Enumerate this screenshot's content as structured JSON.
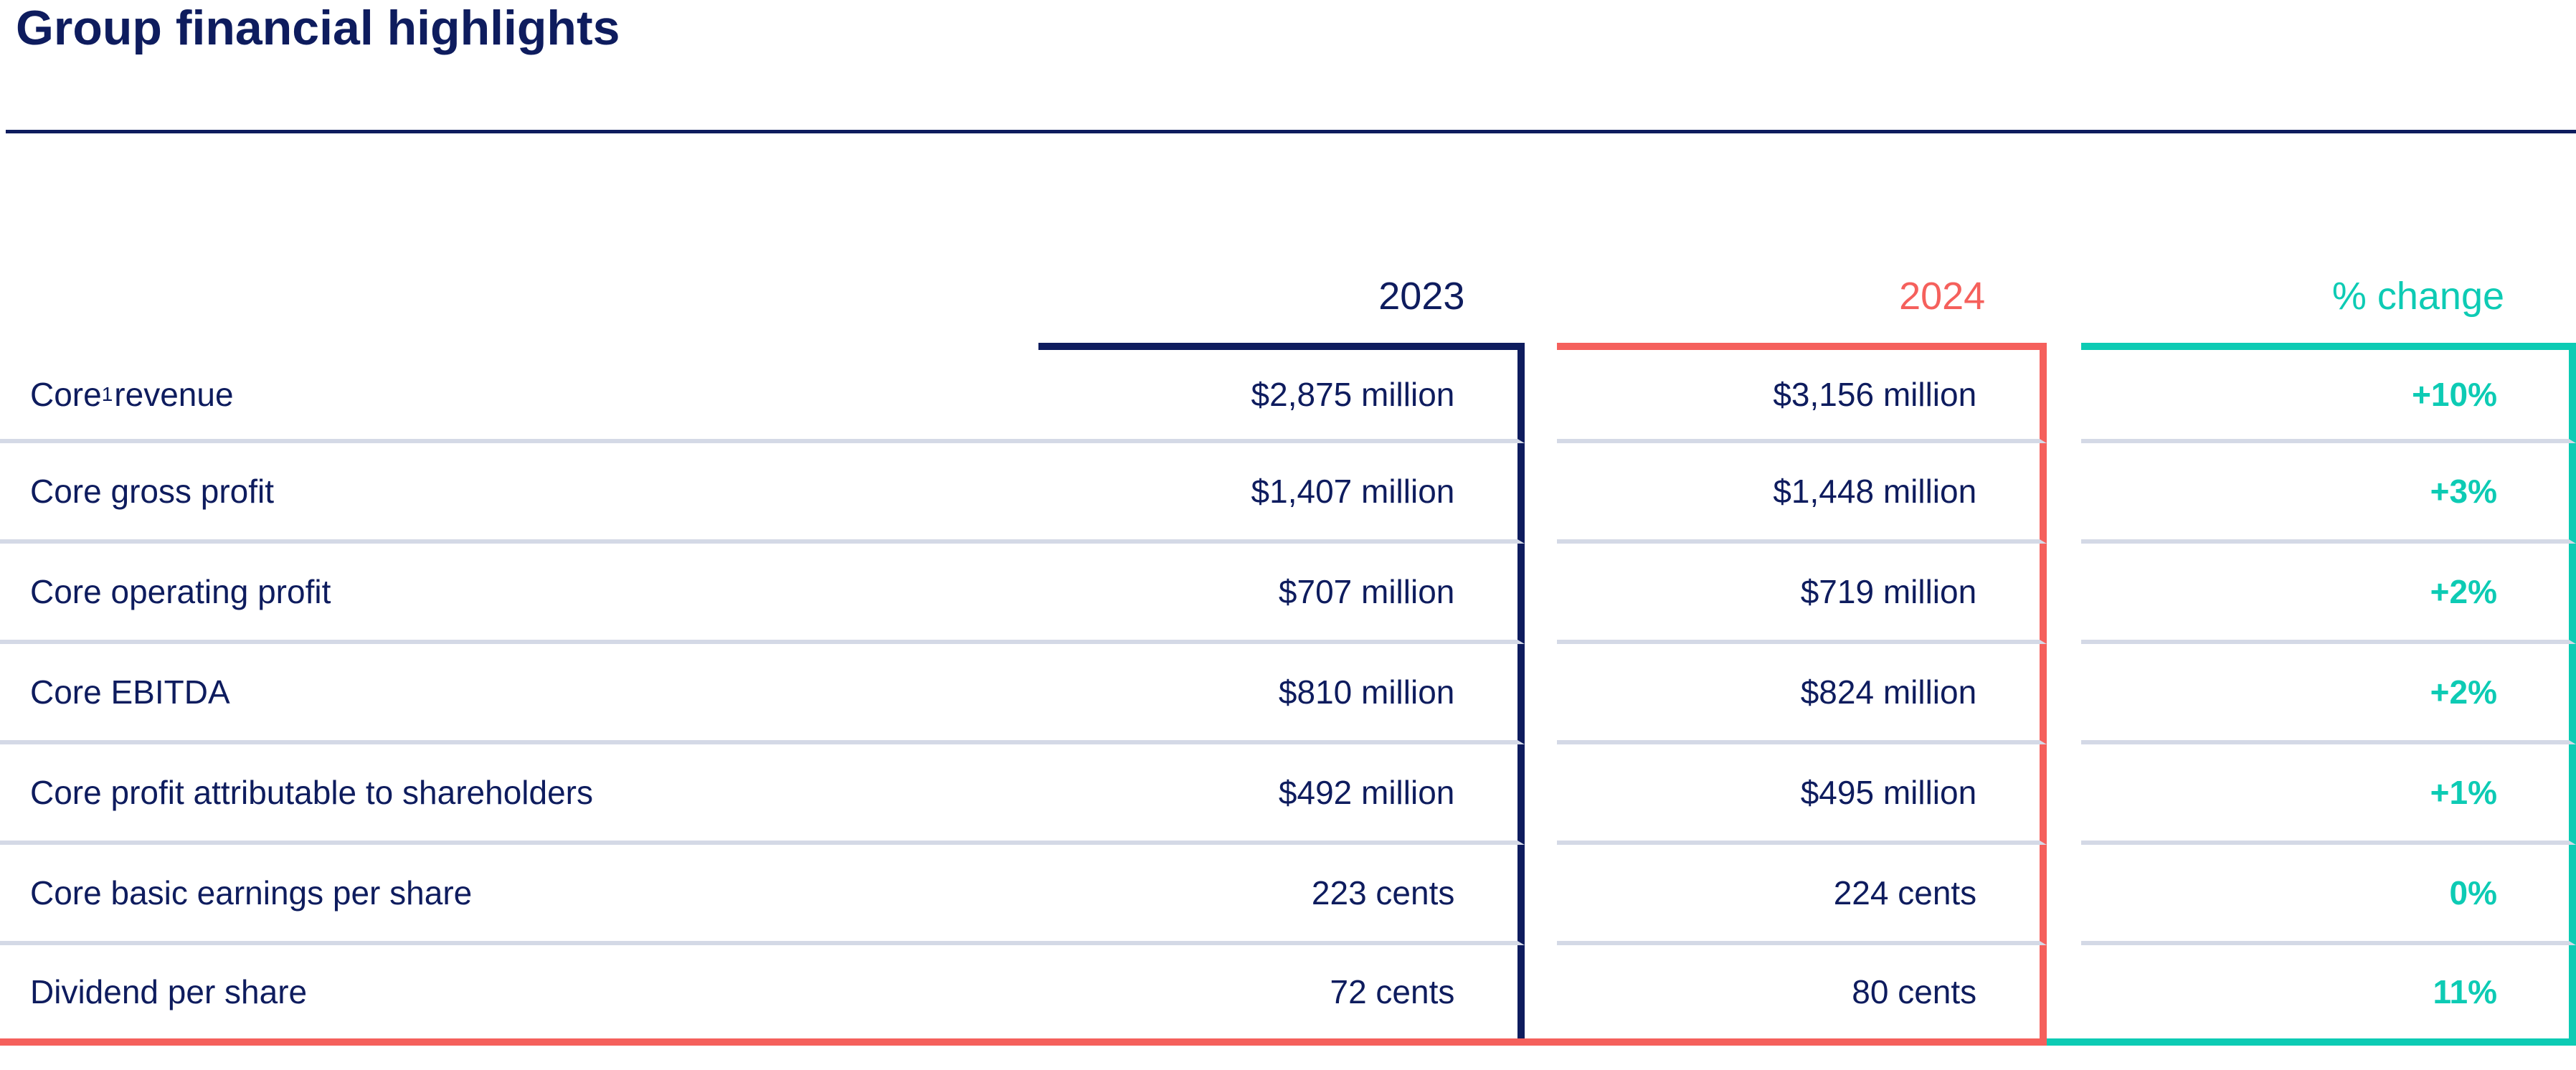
{
  "title": "Group financial highlights",
  "colors": {
    "navy": "#0E1C5E",
    "coral": "#F5605C",
    "teal": "#0DCBB4",
    "row_divider": "#D4D9E6"
  },
  "table": {
    "columns": [
      {
        "key": "y2023",
        "label": "2023"
      },
      {
        "key": "y2024",
        "label": "2024"
      },
      {
        "key": "change",
        "label": "% change"
      }
    ],
    "rows": [
      {
        "label": "Core",
        "label_sup": "1",
        "label_rest": " revenue",
        "y2023": "$2,875 million",
        "y2024": "$3,156 million",
        "change": "+10%"
      },
      {
        "label": "Core gross profit",
        "label_sup": "",
        "label_rest": "",
        "y2023": "$1,407 million",
        "y2024": "$1,448 million",
        "change": "+3%"
      },
      {
        "label": "Core operating profit",
        "label_sup": "",
        "label_rest": "",
        "y2023": "$707 million",
        "y2024": "$719 million",
        "change": "+2%"
      },
      {
        "label": "Core EBITDA",
        "label_sup": "",
        "label_rest": "",
        "y2023": "$810 million",
        "y2024": "$824 million",
        "change": "+2%"
      },
      {
        "label": "Core profit attributable to shareholders",
        "label_sup": "",
        "label_rest": "",
        "y2023": "$492 million",
        "y2024": "$495 million",
        "change": "+1%"
      },
      {
        "label": "Core basic earnings per share",
        "label_sup": "",
        "label_rest": "",
        "y2023": "223 cents",
        "y2024": "224 cents",
        "change": "0%"
      },
      {
        "label": "Dividend per share",
        "label_sup": "",
        "label_rest": "",
        "y2023": "72 cents",
        "y2024": "80 cents",
        "change": "11%"
      }
    ]
  }
}
